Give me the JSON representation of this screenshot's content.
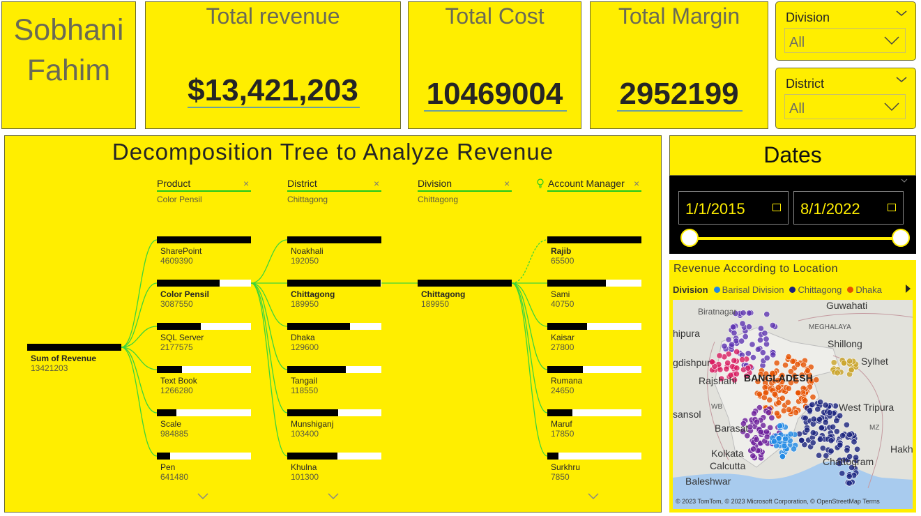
{
  "owner": {
    "line1": "Sobhani",
    "line2": "Fahim"
  },
  "kpis": [
    {
      "title": "Total revenue",
      "value": "$13,421,203"
    },
    {
      "title": "Total Cost",
      "value": "10469004"
    },
    {
      "title": "Total Margin",
      "value": "2952199"
    }
  ],
  "slicers": [
    {
      "title": "Division",
      "value": "All"
    },
    {
      "title": "District",
      "value": "All"
    }
  ],
  "tree": {
    "title": "Decomposition Tree to Analyze Revenue",
    "root": {
      "label": "Sum of Revenue",
      "value": "13421203"
    },
    "levels": [
      {
        "name": "Product",
        "selected": "Color Pensil",
        "nodes": [
          {
            "label": "SharePoint",
            "value": "4609390",
            "fraction": 1.0
          },
          {
            "label": "Color Pensil",
            "value": "3087550",
            "fraction": 0.67
          },
          {
            "label": "SQL Server",
            "value": "2177575",
            "fraction": 0.47
          },
          {
            "label": "Text Book",
            "value": "1266280",
            "fraction": 0.27
          },
          {
            "label": "Scale",
            "value": "984885",
            "fraction": 0.21
          },
          {
            "label": "Pen",
            "value": "641480",
            "fraction": 0.14
          }
        ]
      },
      {
        "name": "District",
        "selected": "Chittagong",
        "nodes": [
          {
            "label": "Noakhali",
            "value": "192050",
            "fraction": 1.0
          },
          {
            "label": "Chittagong",
            "value": "189950",
            "fraction": 0.99
          },
          {
            "label": "Dhaka",
            "value": "129600",
            "fraction": 0.67
          },
          {
            "label": "Tangail",
            "value": "118550",
            "fraction": 0.62
          },
          {
            "label": "Munshiganj",
            "value": "103400",
            "fraction": 0.54
          },
          {
            "label": "Khulna",
            "value": "101300",
            "fraction": 0.53
          }
        ]
      },
      {
        "name": "Division",
        "selected": "Chittagong",
        "nodes": [
          {
            "label": "Chittagong",
            "value": "189950",
            "fraction": 1.0
          }
        ]
      },
      {
        "name": "Account Manager",
        "selected": "",
        "nodes": [
          {
            "label": "Rajib",
            "value": "65500",
            "fraction": 1.0
          },
          {
            "label": "Sami",
            "value": "40750",
            "fraction": 0.62
          },
          {
            "label": "Kaisar",
            "value": "27800",
            "fraction": 0.42
          },
          {
            "label": "Rumana",
            "value": "24650",
            "fraction": 0.38
          },
          {
            "label": "Maruf",
            "value": "17850",
            "fraction": 0.27
          },
          {
            "label": "Surkhru",
            "value": "7850",
            "fraction": 0.12
          }
        ]
      }
    ]
  },
  "dates": {
    "title": "Dates",
    "start": "1/1/2015",
    "end": "8/1/2022"
  },
  "map": {
    "title": "Revenue According to Location",
    "legend_title": "Division",
    "legend": [
      {
        "name": "Barisal Division",
        "color": "#1e88e5"
      },
      {
        "name": "Chittagong",
        "color": "#1a237e"
      },
      {
        "name": "Dhaka",
        "color": "#e65100"
      }
    ],
    "labels": {
      "guwahati": "Guwahati",
      "biratnagar": "Biratnagar",
      "meghalaya": "MEGHALAYA",
      "shillong": "Shillong",
      "sylhet": "Sylhet",
      "hipura": "hipura",
      "gdishpur": "gdishpur",
      "rajshahi": "Rajshahi",
      "bangladesh": "BANGLADESH",
      "wb": "WB",
      "west_tripura": "West Tripura",
      "mz": "MZ",
      "asansol": "sansol",
      "barasat": "Barasat",
      "kolkata": "Kolkata",
      "calcutta": "Calcutta",
      "chattogram": "Chattogram",
      "hakh": "Hakh",
      "baleshwar": "Baleshwar"
    },
    "credit": "© 2023 TomTom, © 2023 Microsoft Corporation, © OpenStreetMap  Terms"
  }
}
